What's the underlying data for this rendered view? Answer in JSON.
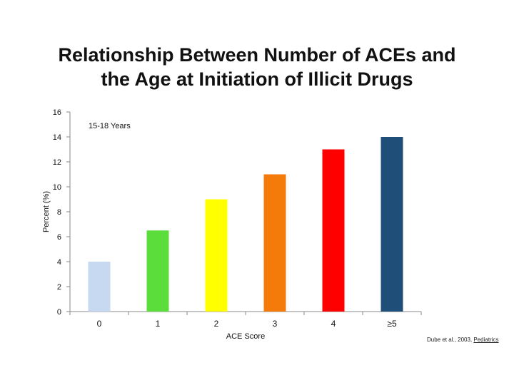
{
  "title": {
    "line1": "Relationship Between Number of ACEs and",
    "line2": "the Age at Initiation of Illicit Drugs"
  },
  "citation": {
    "text": "Dube et al., 2003,",
    "journal": "Pediatrics"
  },
  "chart_data": {
    "type": "bar",
    "annotation": "15-18 Years",
    "xlabel": "ACE Score",
    "ylabel": "Percent (%)",
    "ylim": [
      0,
      16
    ],
    "yticks": [
      0,
      2,
      4,
      6,
      8,
      10,
      12,
      14,
      16
    ],
    "categories": [
      "0",
      "1",
      "2",
      "3",
      "4",
      "≥5"
    ],
    "values": [
      4,
      6.5,
      9,
      11,
      13,
      14
    ],
    "colors": [
      "#c6d9f0",
      "#5bde3c",
      "#ffff00",
      "#f47a0a",
      "#ff0000",
      "#1f4e79"
    ],
    "grid": false,
    "legend": "none"
  }
}
